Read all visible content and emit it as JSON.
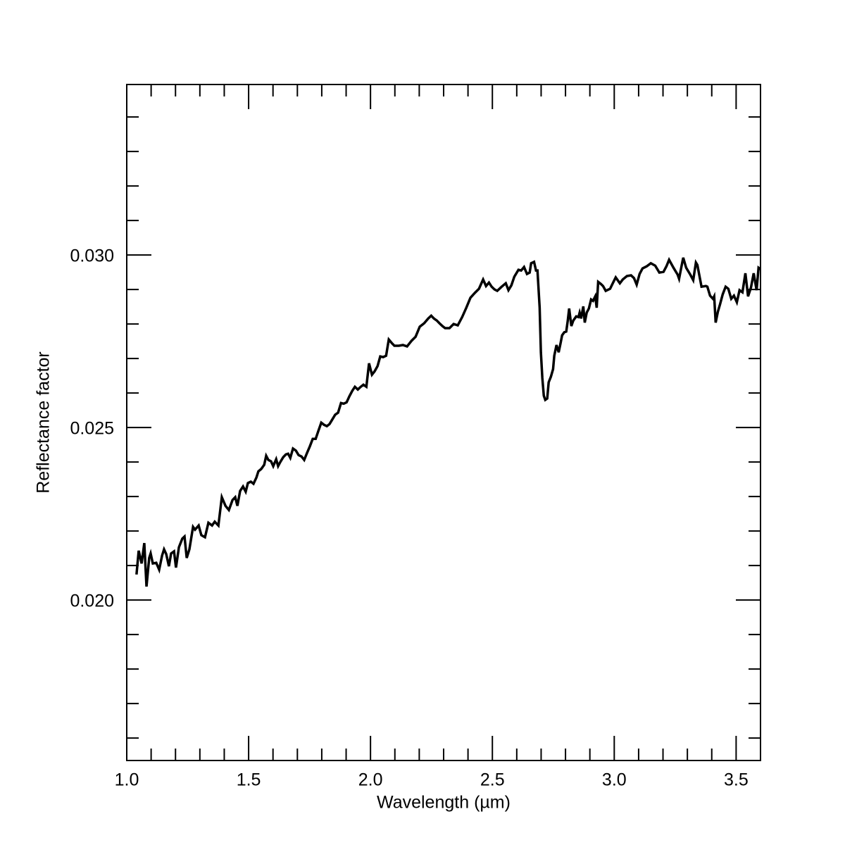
{
  "chart_data": {
    "type": "line",
    "x_label": "Wavelength (µm)",
    "y_label": "Reflectance factor",
    "xlim": [
      1.0,
      3.6
    ],
    "ylim": [
      0.01535,
      0.03494
    ],
    "xticks": [
      {
        "value": 1.0,
        "label": "1.0"
      },
      1.5,
      {
        "value": 2.0,
        "label": "2.0"
      },
      2.5,
      {
        "value": 3.0,
        "label": "3.0"
      },
      3.5
    ],
    "yticks": [
      {
        "value": 0.02,
        "label": "0.020"
      },
      {
        "value": 0.025,
        "label": "0.025"
      },
      {
        "value": 0.03,
        "label": "0.030"
      }
    ],
    "xminor_ticks": [
      1.1,
      1.2,
      1.3,
      1.4,
      1.6,
      1.7,
      1.8,
      1.9,
      2.1,
      2.2,
      2.3,
      2.4,
      2.6,
      2.7,
      2.8,
      2.9,
      3.1,
      3.2,
      3.3,
      3.4
    ],
    "yminor_ticks": [
      0.016,
      0.017,
      0.018,
      0.019,
      0.021,
      0.022,
      0.023,
      0.024,
      0.026,
      0.027,
      0.028,
      0.029,
      0.031,
      0.032,
      0.033,
      0.034
    ],
    "color": "#000000",
    "x": [
      1.04,
      1.049,
      1.061,
      1.072,
      1.081,
      1.092,
      1.098,
      1.107,
      1.121,
      1.133,
      1.145,
      1.153,
      1.162,
      1.173,
      1.182,
      1.194,
      1.202,
      1.214,
      1.228,
      1.237,
      1.246,
      1.257,
      1.272,
      1.28,
      1.295,
      1.306,
      1.321,
      1.335,
      1.35,
      1.361,
      1.376,
      1.39,
      1.405,
      1.419,
      1.434,
      1.445,
      1.454,
      1.465,
      1.477,
      1.488,
      1.497,
      1.509,
      1.52,
      1.532,
      1.54,
      1.552,
      1.564,
      1.572,
      1.581,
      1.592,
      1.601,
      1.613,
      1.621,
      1.63,
      1.642,
      1.653,
      1.662,
      1.671,
      1.682,
      1.694,
      1.705,
      1.717,
      1.728,
      1.74,
      1.751,
      1.763,
      1.775,
      1.786,
      1.798,
      1.809,
      1.821,
      1.832,
      1.844,
      1.855,
      1.867,
      1.879,
      1.89,
      1.902,
      1.913,
      1.925,
      1.936,
      1.948,
      1.96,
      1.971,
      1.983,
      1.994,
      2.006,
      2.017,
      2.029,
      2.04,
      2.052,
      2.064,
      2.075,
      2.087,
      2.098,
      2.116,
      2.133,
      2.15,
      2.168,
      2.185,
      2.202,
      2.22,
      2.237,
      2.249,
      2.26,
      2.272,
      2.283,
      2.295,
      2.306,
      2.324,
      2.341,
      2.358,
      2.376,
      2.393,
      2.41,
      2.428,
      2.445,
      2.462,
      2.474,
      2.486,
      2.497,
      2.509,
      2.52,
      2.538,
      2.555,
      2.566,
      2.578,
      2.59,
      2.607,
      2.618,
      2.63,
      2.642,
      2.653,
      2.659,
      2.671,
      2.679,
      2.685,
      2.694,
      2.699,
      2.705,
      2.711,
      2.717,
      2.725,
      2.731,
      2.74,
      2.749,
      2.754,
      2.763,
      2.772,
      2.78,
      2.786,
      2.795,
      2.803,
      2.809,
      2.815,
      2.824,
      2.832,
      2.844,
      2.853,
      2.858,
      2.864,
      2.873,
      2.879,
      2.887,
      2.896,
      2.905,
      2.913,
      2.922,
      2.928,
      2.934,
      2.945,
      2.954,
      2.965,
      2.983,
      2.994,
      3.006,
      3.023,
      3.035,
      3.052,
      3.069,
      3.081,
      3.092,
      3.104,
      3.116,
      3.133,
      3.15,
      3.168,
      3.185,
      3.202,
      3.214,
      3.225,
      3.243,
      3.26,
      3.266,
      3.277,
      3.283,
      3.295,
      3.312,
      3.324,
      3.335,
      3.341,
      3.358,
      3.376,
      3.382,
      3.393,
      3.405,
      3.41,
      3.416,
      3.425,
      3.434,
      3.445,
      3.457,
      3.468,
      3.48,
      3.491,
      3.503,
      3.514,
      3.526,
      3.538,
      3.549,
      3.561,
      3.572,
      3.584,
      3.592,
      3.6
    ],
    "values": [
      0.02074,
      0.02143,
      0.02106,
      0.02165,
      0.02039,
      0.02122,
      0.02135,
      0.02106,
      0.02108,
      0.02088,
      0.02129,
      0.02147,
      0.02133,
      0.02098,
      0.02135,
      0.02141,
      0.02094,
      0.02153,
      0.02178,
      0.02184,
      0.02122,
      0.02147,
      0.02212,
      0.02204,
      0.02216,
      0.02188,
      0.02182,
      0.02224,
      0.02216,
      0.02227,
      0.02216,
      0.02298,
      0.02273,
      0.02261,
      0.0229,
      0.02298,
      0.02273,
      0.02316,
      0.02329,
      0.02314,
      0.02339,
      0.02343,
      0.02337,
      0.02355,
      0.02373,
      0.0238,
      0.02392,
      0.02418,
      0.02406,
      0.02402,
      0.02388,
      0.02408,
      0.02388,
      0.024,
      0.02414,
      0.02422,
      0.02424,
      0.02412,
      0.02439,
      0.02433,
      0.0242,
      0.02416,
      0.02406,
      0.02427,
      0.02445,
      0.02467,
      0.02467,
      0.0249,
      0.02514,
      0.02508,
      0.02504,
      0.0251,
      0.02524,
      0.02537,
      0.02543,
      0.02571,
      0.02569,
      0.02573,
      0.0259,
      0.02606,
      0.02618,
      0.0261,
      0.02618,
      0.02624,
      0.02618,
      0.02686,
      0.02653,
      0.02663,
      0.02678,
      0.02706,
      0.02704,
      0.02708,
      0.02755,
      0.02745,
      0.02737,
      0.02737,
      0.02739,
      0.02735,
      0.02751,
      0.02763,
      0.02792,
      0.02802,
      0.02816,
      0.02824,
      0.02816,
      0.0281,
      0.02802,
      0.02794,
      0.02788,
      0.02788,
      0.028,
      0.02796,
      0.0282,
      0.02847,
      0.02876,
      0.0289,
      0.02902,
      0.02929,
      0.0291,
      0.0292,
      0.02908,
      0.029,
      0.02896,
      0.02908,
      0.02918,
      0.02898,
      0.02912,
      0.02937,
      0.02957,
      0.02955,
      0.02965,
      0.02945,
      0.02949,
      0.02976,
      0.0298,
      0.02955,
      0.02955,
      0.02847,
      0.02718,
      0.02643,
      0.02592,
      0.0258,
      0.02584,
      0.02631,
      0.02647,
      0.02669,
      0.02708,
      0.02739,
      0.02718,
      0.02745,
      0.02767,
      0.02776,
      0.02778,
      0.02808,
      0.02845,
      0.02794,
      0.0281,
      0.02822,
      0.0282,
      0.02833,
      0.02816,
      0.02851,
      0.02804,
      0.02833,
      0.02845,
      0.02871,
      0.02867,
      0.0288,
      0.02847,
      0.02922,
      0.02916,
      0.0291,
      0.02896,
      0.02902,
      0.02918,
      0.02935,
      0.02918,
      0.02929,
      0.02939,
      0.02941,
      0.02933,
      0.02914,
      0.02945,
      0.02961,
      0.02967,
      0.02976,
      0.02969,
      0.02949,
      0.02951,
      0.02967,
      0.02986,
      0.02963,
      0.02943,
      0.02931,
      0.02971,
      0.02992,
      0.02963,
      0.02943,
      0.02927,
      0.02978,
      0.02971,
      0.02908,
      0.0291,
      0.02908,
      0.02882,
      0.02873,
      0.0288,
      0.02804,
      0.02835,
      0.02857,
      0.02886,
      0.02908,
      0.02902,
      0.02873,
      0.02882,
      0.02863,
      0.02898,
      0.02892,
      0.02947,
      0.0288,
      0.02906,
      0.02947,
      0.02898,
      0.02963,
      0.02959
    ]
  }
}
